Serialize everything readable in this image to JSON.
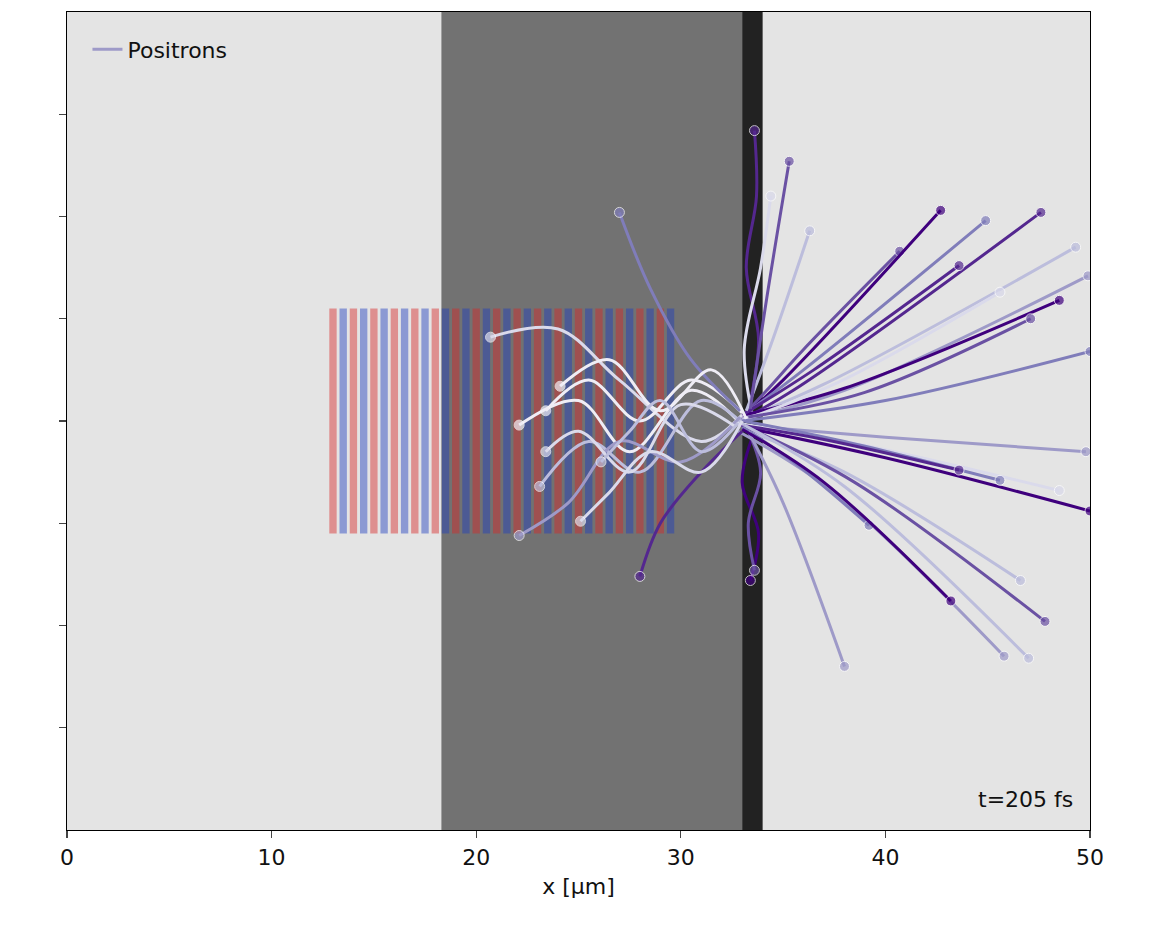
{
  "chart_data": {
    "type": "scatter",
    "xlabel": "x [µm]",
    "xlim": [
      0,
      50
    ],
    "xticks": [
      0,
      10,
      20,
      30,
      40,
      50
    ],
    "ylim": [
      -20,
      20
    ],
    "yticks": [
      -15,
      -10,
      -5,
      0,
      5,
      10,
      15
    ],
    "tick_labels": "x",
    "legend": "upper left",
    "annotations": [
      "t=205 fs"
    ],
    "regions": [
      {
        "x0": 18.3,
        "x1": 33,
        "color": "#5e5e5e"
      },
      {
        "x0": 33,
        "x1": 34,
        "color": "#000000"
      }
    ],
    "laser": {
      "red_x": [
        13,
        14,
        15,
        16,
        17,
        18,
        19,
        20,
        21,
        22,
        23,
        24,
        25,
        26,
        27,
        28,
        29
      ],
      "blue_x": [
        13.5,
        14.5,
        15.5,
        16.5,
        17.5,
        18.5,
        19.5,
        20.5,
        21.5,
        22.5,
        23.5,
        24.5,
        25.5,
        26.5,
        27.5,
        28.5,
        29.5
      ],
      "y0": -5.5,
      "y1": 5.5
    },
    "series": [
      {
        "name": "Positrons",
        "color": "#9e9ac8",
        "marker": "circle",
        "line_style": "solid",
        "tracks": [
          {
            "color": "#54278f",
            "x": [
              33.3,
              33.8,
              33.2,
              33.7,
              33.6
            ],
            "y": [
              0.5,
              4,
              7.5,
              11,
              14.2
            ]
          },
          {
            "color": "#dadaeb",
            "x": [
              33.5,
              33.1,
              33.9,
              34.4
            ],
            "y": [
              0.3,
              3.5,
              7.5,
              11
            ]
          },
          {
            "color": "#3f007d",
            "x": [
              33.6,
              33.0,
              33.8,
              33.4
            ],
            "y": [
              -0.5,
              -3,
              -5.5,
              -7.8
            ]
          },
          {
            "color": "#6a51a3",
            "x": [
              33.2,
              33.9,
              33.3,
              33.6
            ],
            "y": [
              -0.3,
              -2.5,
              -5,
              -7.3
            ]
          },
          {
            "color": "#6a51a3",
            "x": [
              33.0,
              34.2,
              36.0,
              40.7
            ],
            "y": [
              0.2,
              1.5,
              3.5,
              8.3
            ]
          },
          {
            "color": "#3f007d",
            "x": [
              32.8,
              35.0,
              42.7
            ],
            "y": [
              0.0,
              2.0,
              10.3
            ]
          },
          {
            "color": "#807dba",
            "x": [
              33.2,
              36.0,
              44.9
            ],
            "y": [
              0.4,
              2.5,
              9.8
            ]
          },
          {
            "color": "#54278f",
            "x": [
              32.5,
              35.5,
              47.6
            ],
            "y": [
              -0.2,
              1.5,
              10.2
            ]
          },
          {
            "color": "#bcbddc",
            "x": [
              33.0,
              37.0,
              49.3
            ],
            "y": [
              0.1,
              1.8,
              8.5
            ]
          },
          {
            "color": "#9e9ac8",
            "x": [
              32.7,
              38.0,
              49.9
            ],
            "y": [
              0.0,
              1.5,
              7.1
            ]
          },
          {
            "color": "#3f007d",
            "x": [
              33.1,
              38.0,
              48.5
            ],
            "y": [
              0.3,
              1.6,
              5.9
            ]
          },
          {
            "color": "#dadaeb",
            "x": [
              32.6,
              37.5,
              45.6
            ],
            "y": [
              -0.1,
              1.8,
              6.3
            ]
          },
          {
            "color": "#6a51a3",
            "x": [
              33.3,
              39.0,
              47.1
            ],
            "y": [
              0.2,
              1.4,
              5.0
            ]
          },
          {
            "color": "#807dba",
            "x": [
              32.9,
              40.0,
              50.0
            ],
            "y": [
              0.0,
              1.0,
              3.4
            ]
          },
          {
            "color": "#54278f",
            "x": [
              33.0,
              36.5,
              43.6
            ],
            "y": [
              0.3,
              2.5,
              7.6
            ]
          },
          {
            "color": "#bcbddc",
            "x": [
              33.2,
              34.5,
              36.3
            ],
            "y": [
              0.5,
              4.0,
              9.3
            ]
          },
          {
            "color": "#6a51a3",
            "x": [
              33.4,
              34.2,
              35.3
            ],
            "y": [
              0.6,
              6.0,
              12.7
            ]
          },
          {
            "color": "#9e9ac8",
            "x": [
              32.8,
              40.0,
              49.8
            ],
            "y": [
              -0.2,
              -0.8,
              -1.5
            ]
          },
          {
            "color": "#3f007d",
            "x": [
              33.0,
              40.0,
              50.0
            ],
            "y": [
              -0.3,
              -1.8,
              -4.4
            ]
          },
          {
            "color": "#dadaeb",
            "x": [
              32.7,
              39.0,
              48.5
            ],
            "y": [
              -0.1,
              -1.2,
              -3.4
            ]
          },
          {
            "color": "#807dba",
            "x": [
              33.1,
              38.0,
              45.6
            ],
            "y": [
              0.0,
              -1.0,
              -2.9
            ]
          },
          {
            "color": "#54278f",
            "x": [
              32.9,
              37.0,
              43.6
            ],
            "y": [
              -0.2,
              -0.9,
              -2.4
            ]
          },
          {
            "color": "#bcbddc",
            "x": [
              33.0,
              38.0,
              46.6
            ],
            "y": [
              -0.4,
              -2.5,
              -7.8
            ]
          },
          {
            "color": "#6a51a3",
            "x": [
              33.2,
              38.5,
              47.8
            ],
            "y": [
              -0.3,
              -3.0,
              -9.8
            ]
          },
          {
            "color": "#9e9ac8",
            "x": [
              32.8,
              37.5,
              45.8
            ],
            "y": [
              -0.5,
              -3.5,
              -11.5
            ]
          },
          {
            "color": "#bcbddc",
            "x": [
              33.1,
              38.0,
              47.0
            ],
            "y": [
              -0.2,
              -3.2,
              -11.6
            ]
          },
          {
            "color": "#807dba",
            "x": [
              33.0,
              35.5,
              39.2
            ],
            "y": [
              -0.3,
              -2.0,
              -5.1
            ]
          },
          {
            "color": "#9e9ac8",
            "x": [
              33.3,
              35.0,
              38.0
            ],
            "y": [
              -0.5,
              -4.0,
              -12.0
            ]
          },
          {
            "color": "#3f007d",
            "x": [
              33.0,
              37.0,
              43.2
            ],
            "y": [
              -0.4,
              -3.0,
              -8.8
            ]
          },
          {
            "color": "#dadaeb",
            "x": [
              33.0,
              31.0,
              27.0,
              24.0,
              20.7
            ],
            "y": [
              0.3,
              -1.0,
              2.0,
              4.5,
              4.1
            ]
          },
          {
            "color": "#efedf5",
            "x": [
              32.8,
              30.5,
              27.5,
              25.0,
              22.1
            ],
            "y": [
              0.0,
              1.5,
              -1.5,
              1.0,
              -0.2
            ]
          },
          {
            "color": "#bcbddc",
            "x": [
              33.1,
              31.0,
              28.0,
              25.5,
              23.1
            ],
            "y": [
              -0.2,
              1.0,
              -2.5,
              -1.0,
              -3.2
            ]
          },
          {
            "color": "#9e9ac8",
            "x": [
              32.9,
              30.0,
              27.0,
              24.5,
              22.1
            ],
            "y": [
              0.2,
              -2.0,
              -1.0,
              -4.0,
              -5.6
            ]
          },
          {
            "color": "#efedf5",
            "x": [
              33.0,
              30.5,
              28.0,
              25.5,
              23.4
            ],
            "y": [
              0.4,
              2.0,
              0.0,
              2.0,
              0.5
            ]
          },
          {
            "color": "#dadaeb",
            "x": [
              32.7,
              30.0,
              27.5,
              25.0,
              23.4
            ],
            "y": [
              -0.3,
              0.8,
              -2.5,
              -0.5,
              -1.5
            ]
          },
          {
            "color": "#807dba",
            "x": [
              32.9,
              30.5,
              28.5,
              27.0
            ],
            "y": [
              0.5,
              3.0,
              6.5,
              10.2
            ]
          },
          {
            "color": "#54278f",
            "x": [
              33.0,
              31.0,
              29.0,
              28.0
            ],
            "y": [
              -0.5,
              -2.5,
              -5.0,
              -7.6
            ]
          },
          {
            "color": "#efedf5",
            "x": [
              33.2,
              31.5,
              29.0,
              26.5,
              24.1
            ],
            "y": [
              0.1,
              2.5,
              0.5,
              3.0,
              1.7
            ]
          },
          {
            "color": "#bcbddc",
            "x": [
              32.8,
              31.0,
              29.0,
              27.5,
              26.1
            ],
            "y": [
              -0.1,
              -1.5,
              1.0,
              -0.5,
              -2.0
            ]
          },
          {
            "color": "#dadaeb",
            "x": [
              33.0,
              31.0,
              28.5,
              26.5,
              25.1
            ],
            "y": [
              0.0,
              -2.5,
              -1.5,
              -3.5,
              -4.9
            ]
          }
        ]
      }
    ]
  }
}
